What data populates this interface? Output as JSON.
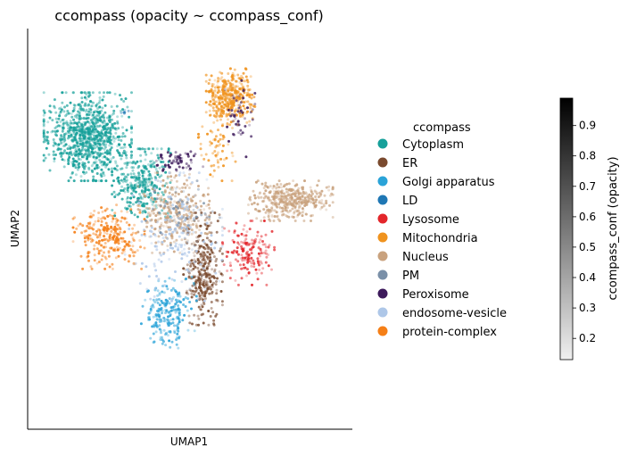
{
  "chart_data": {
    "type": "scatter",
    "title": "ccompass (opacity ~ ccompass_conf)",
    "xlabel": "UMAP1",
    "ylabel": "UMAP2",
    "xticks": false,
    "yticks": false,
    "grid": false,
    "legend": {
      "title": "ccompass",
      "placement": "right",
      "entries": [
        {
          "name": "Cytoplasm",
          "color": "#16a09a"
        },
        {
          "name": "ER",
          "color": "#7a4a2e"
        },
        {
          "name": "Golgi apparatus",
          "color": "#2aa3d8"
        },
        {
          "name": "LD",
          "color": "#1f77b4"
        },
        {
          "name": "Lysosome",
          "color": "#e3262b"
        },
        {
          "name": "Mitochondria",
          "color": "#f0931e"
        },
        {
          "name": "Nucleus",
          "color": "#c9a27e"
        },
        {
          "name": "PM",
          "color": "#7a90a8"
        },
        {
          "name": "Peroxisome",
          "color": "#3d1a5b"
        },
        {
          "name": "endosome-vesicle",
          "color": "#aec7e8"
        },
        {
          "name": "protein-complex",
          "color": "#f57f17"
        }
      ]
    },
    "colorbar": {
      "label": "ccompass_conf (opacity)",
      "range": [
        0.13,
        0.99
      ],
      "ticks": [
        "0.2",
        "0.3",
        "0.4",
        "0.5",
        "0.6",
        "0.7",
        "0.8",
        "0.9"
      ],
      "colormap": "greys"
    },
    "clusters": [
      {
        "category": "Cytoplasm",
        "x": [
          0.5,
          3.2
        ],
        "y": [
          6.2,
          8.4
        ],
        "n": 900
      },
      {
        "category": "Cytoplasm",
        "x": [
          2.6,
          4.4
        ],
        "y": [
          5.3,
          7.0
        ],
        "n": 300
      },
      {
        "category": "Mitochondria",
        "x": [
          5.5,
          7.0
        ],
        "y": [
          7.6,
          9.0
        ],
        "n": 380
      },
      {
        "category": "Nucleus",
        "x": [
          6.8,
          9.4
        ],
        "y": [
          5.2,
          6.2
        ],
        "n": 400
      },
      {
        "category": "Nucleus",
        "x": [
          3.4,
          5.6
        ],
        "y": [
          4.4,
          6.4
        ],
        "n": 300
      },
      {
        "category": "ER",
        "x": [
          4.8,
          6.0
        ],
        "y": [
          2.6,
          5.4
        ],
        "n": 320
      },
      {
        "category": "Golgi apparatus",
        "x": [
          3.5,
          5.2
        ],
        "y": [
          2.0,
          3.8
        ],
        "n": 220
      },
      {
        "category": "Lysosome",
        "x": [
          6.0,
          7.6
        ],
        "y": [
          3.6,
          5.2
        ],
        "n": 160
      },
      {
        "category": "protein-complex",
        "x": [
          1.4,
          3.6
        ],
        "y": [
          4.0,
          5.6
        ],
        "n": 260
      },
      {
        "category": "Peroxisome",
        "x": [
          3.8,
          5.4
        ],
        "y": [
          6.4,
          7.0
        ],
        "n": 60
      },
      {
        "category": "Peroxisome",
        "x": [
          6.0,
          7.0
        ],
        "y": [
          6.8,
          8.8
        ],
        "n": 50
      },
      {
        "category": "endosome-vesicle",
        "x": [
          3.0,
          6.0
        ],
        "y": [
          3.2,
          6.4
        ],
        "n": 180
      },
      {
        "category": "Mitochondria",
        "x": [
          5.2,
          6.4
        ],
        "y": [
          6.2,
          7.8
        ],
        "n": 60
      },
      {
        "category": "PM",
        "x": [
          3.4,
          6.0
        ],
        "y": [
          4.6,
          6.2
        ],
        "n": 50
      },
      {
        "category": "LD",
        "x": [
          2.8,
          3.2
        ],
        "y": [
          7.8,
          8.0
        ],
        "n": 6
      }
    ],
    "xlim": [
      0,
      10
    ],
    "ylim": [
      0,
      10
    ]
  }
}
